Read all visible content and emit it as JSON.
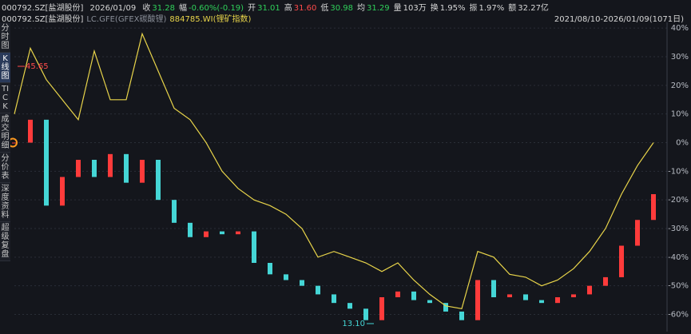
{
  "header": {
    "code": "000792.SZ[盐湖股份]",
    "date": "2026/01/09",
    "items": [
      {
        "label": "收",
        "value": "31.28",
        "color": "#2fd05a"
      },
      {
        "label": "幅",
        "value": "-0.60%(-0.19)",
        "color": "#2fd05a"
      },
      {
        "label": "开",
        "value": "31.01",
        "color": "#2fd05a"
      },
      {
        "label": "高",
        "value": "31.60",
        "color": "#ff4a4a"
      },
      {
        "label": "低",
        "value": "30.98",
        "color": "#2fd05a"
      },
      {
        "label": "均",
        "value": "31.29",
        "color": "#2fd05a"
      },
      {
        "label": "量",
        "value": "103万",
        "color": "#d8d8d8"
      },
      {
        "label": "换",
        "value": "1.95%",
        "color": "#d8d8d8"
      },
      {
        "label": "振",
        "value": "1.97%",
        "color": "#d8d8d8"
      },
      {
        "label": "额",
        "value": "32.27亿",
        "color": "#d8d8d8"
      }
    ]
  },
  "nav": {
    "tabs": [
      "分时图",
      "K线图",
      "TICK",
      "成交明细",
      "分价表",
      "深度资料",
      "超级复盘"
    ],
    "active": 1
  },
  "chart_data": {
    "type": "candle-line",
    "range": "2021/08/10-2026/01/09(1071日)",
    "hidden_series": {
      "name": "LC.GFE(GFEX碳酸锂)",
      "color": "#8a8f99"
    },
    "series": [
      {
        "name": "000792.SZ[盐湖股份]",
        "kind": "candle",
        "color": "#d8d8d8",
        "up_color": "#ff3b3b",
        "down_color": "#45d6d6",
        "values": [
          0,
          8,
          -22,
          -12,
          -6,
          -12,
          -4,
          -14,
          -6,
          -20,
          -28,
          -33,
          -31,
          -32,
          -31,
          -42,
          -46,
          -48,
          -50,
          -53,
          -56,
          -58,
          -62,
          -54,
          -52,
          -55,
          -56,
          -59,
          -62,
          -48,
          -54,
          -53,
          -55,
          -56,
          -54,
          -53,
          -50,
          -47,
          -36,
          -27,
          -18
        ]
      },
      {
        "name": "884785.WI(锂矿指数)",
        "kind": "line",
        "color": "#e8d44a",
        "values": [
          10,
          33,
          22,
          15,
          8,
          32,
          15,
          15,
          38,
          25,
          12,
          8,
          0,
          -10,
          -16,
          -20,
          -22,
          -25,
          -30,
          -40,
          -38,
          -40,
          -42,
          -45,
          -42,
          -48,
          -53,
          -57,
          -58,
          -38,
          -40,
          -46,
          -47,
          -50,
          -48,
          -44,
          -38,
          -30,
          -18,
          -8,
          0
        ]
      }
    ],
    "annotations": [
      {
        "text": "45.65",
        "color": "#ff4a4a"
      },
      {
        "text": "13.10",
        "color": "#45d6d6"
      }
    ],
    "ylim": [
      -66,
      42
    ],
    "yticks": [
      {
        "value": 40,
        "label": "40%"
      },
      {
        "value": 30,
        "label": "30%"
      },
      {
        "value": 20,
        "label": "20%"
      },
      {
        "value": 10,
        "label": "10%"
      },
      {
        "value": 0,
        "label": "0%"
      },
      {
        "value": -10,
        "label": "-10%"
      },
      {
        "value": -20,
        "label": "-20%"
      },
      {
        "value": -30,
        "label": "-30%"
      },
      {
        "value": -40,
        "label": "-40%"
      },
      {
        "value": -50,
        "label": "-50%"
      },
      {
        "value": -60,
        "label": "-60%"
      }
    ],
    "grid": true
  }
}
